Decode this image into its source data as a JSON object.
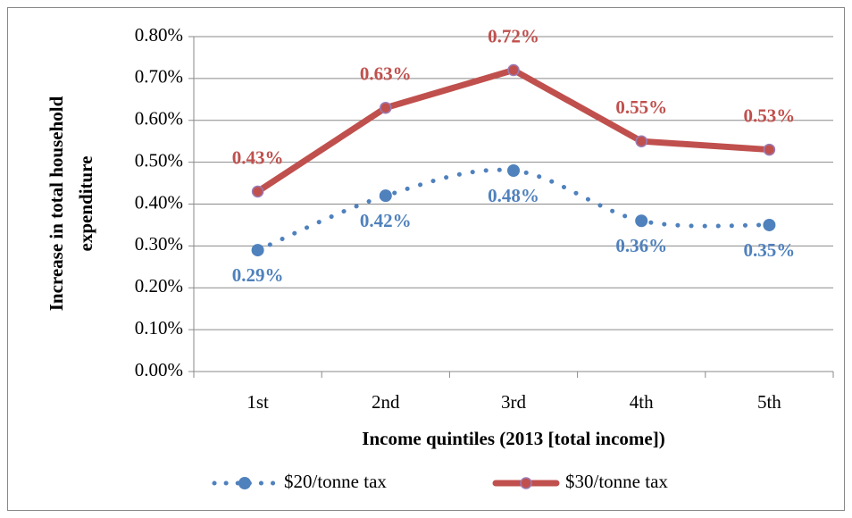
{
  "chart_data": {
    "type": "line",
    "x_label": "Income quintiles (2013 [total income])",
    "y_label": [
      "Increase in total household",
      "expenditure"
    ],
    "categories": [
      "1st",
      "2nd",
      "3rd",
      "4th",
      "5th"
    ],
    "series": [
      {
        "name": "$20/tonne tax",
        "color": "#4f81bd",
        "style": "dotted",
        "values": [
          0.29,
          0.42,
          0.48,
          0.36,
          0.35
        ],
        "value_labels": [
          "0.29%",
          "0.42%",
          "0.48%",
          "0.36%",
          "0.35%"
        ]
      },
      {
        "name": "$30/tonne tax",
        "color": "#c0504d",
        "style": "solid",
        "values": [
          0.43,
          0.63,
          0.72,
          0.55,
          0.53
        ],
        "value_labels": [
          "0.43%",
          "0.63%",
          "0.72%",
          "0.55%",
          "0.53%"
        ]
      }
    ],
    "ylim": [
      0,
      0.8
    ],
    "yticks": [
      {
        "value": 0,
        "label": "0.00%"
      },
      {
        "value": 0.1,
        "label": "0.10%"
      },
      {
        "value": 0.2,
        "label": "0.20%"
      },
      {
        "value": 0.3,
        "label": "0.30%"
      },
      {
        "value": 0.4,
        "label": "0.40%"
      },
      {
        "value": 0.5,
        "label": "0.50%"
      },
      {
        "value": 0.6,
        "label": "0.60%"
      },
      {
        "value": 0.7,
        "label": "0.70%"
      },
      {
        "value": 0.8,
        "label": "0.80%"
      }
    ],
    "grid": true,
    "legend": "bottom"
  }
}
